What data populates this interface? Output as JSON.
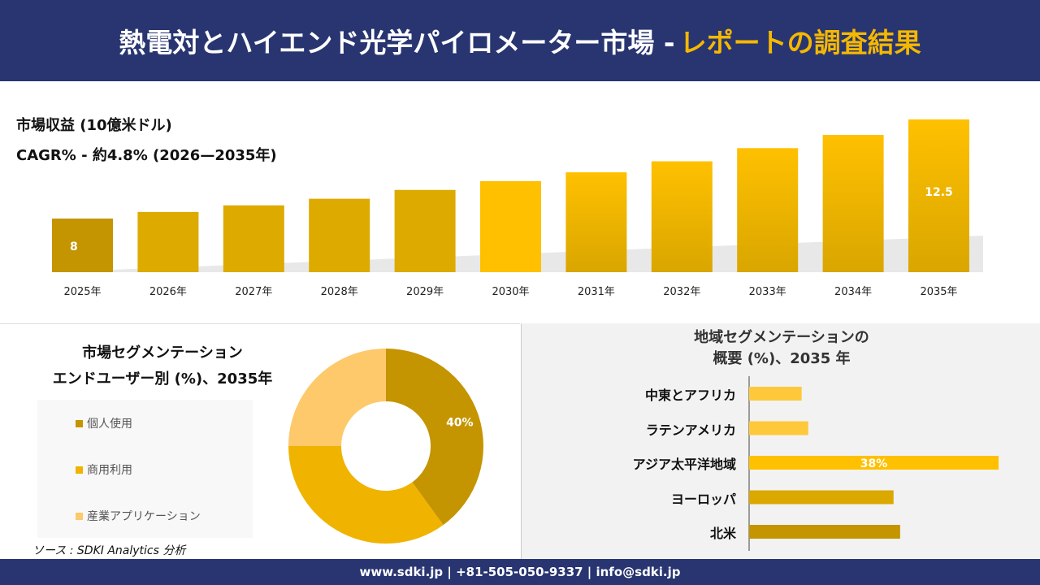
{
  "header": {
    "title": "熱電対とハイエンド光学パイロメーター市場 -",
    "title_accent": "レポートの調査結果"
  },
  "revenue": {
    "label": "市場収益 (10億米ドル)",
    "cagr": "CAGR% - 約4.8% (2026—2035年)"
  },
  "chart_data": [
    {
      "type": "bar",
      "categories": [
        "2025年",
        "2026年",
        "2027年",
        "2028年",
        "2029年",
        "2030年",
        "2031年",
        "2032年",
        "2033年",
        "2034年",
        "2035年"
      ],
      "values": [
        8,
        8.3,
        8.6,
        8.9,
        9.3,
        9.7,
        10.1,
        10.6,
        11.2,
        11.8,
        12.5
      ],
      "data_labels": {
        "0": "8",
        "10": "12.5"
      },
      "ylabel": "",
      "xlabel": "",
      "colors": [
        "#c39400",
        "#ffc000"
      ]
    },
    {
      "type": "pie",
      "title": "市場セグメンテーション エンドユーザー別 (%)、2035年",
      "categories": [
        "個人使用",
        "商用利用",
        "産業アプリケーション"
      ],
      "values": [
        40,
        35,
        25
      ],
      "colors": [
        "#c49500",
        "#efb300",
        "#fdc96a"
      ],
      "data_labels": [
        "40%",
        "",
        ""
      ],
      "legend": "left",
      "donut": true
    },
    {
      "type": "bar",
      "orientation": "horizontal",
      "title": "地域セグメンテーションの 概要 (%)、2035 年",
      "categories": [
        "中東とアフリカ",
        "ラテンアメリカ",
        "アジア太平洋地域",
        "ヨーロッパ",
        "北米"
      ],
      "values": [
        8,
        9,
        38,
        22,
        23
      ],
      "data_labels": [
        "",
        "",
        "38%",
        "",
        ""
      ],
      "colors": [
        "#fdc93a",
        "#fdc93a",
        "#ffc000",
        "#dba800",
        "#c49500"
      ]
    }
  ],
  "segment": {
    "title1": "市場セグメンテーション",
    "title2": "エンドユーザー別 (%)、2035年"
  },
  "region": {
    "title1": "地域セグメンテーションの",
    "title2": "概要 (%)、2035 年"
  },
  "source": "ソース : SDKI Analytics 分析",
  "footer": "www.sdki.jp | +81-505-050-9337 | info@sdki.jp"
}
